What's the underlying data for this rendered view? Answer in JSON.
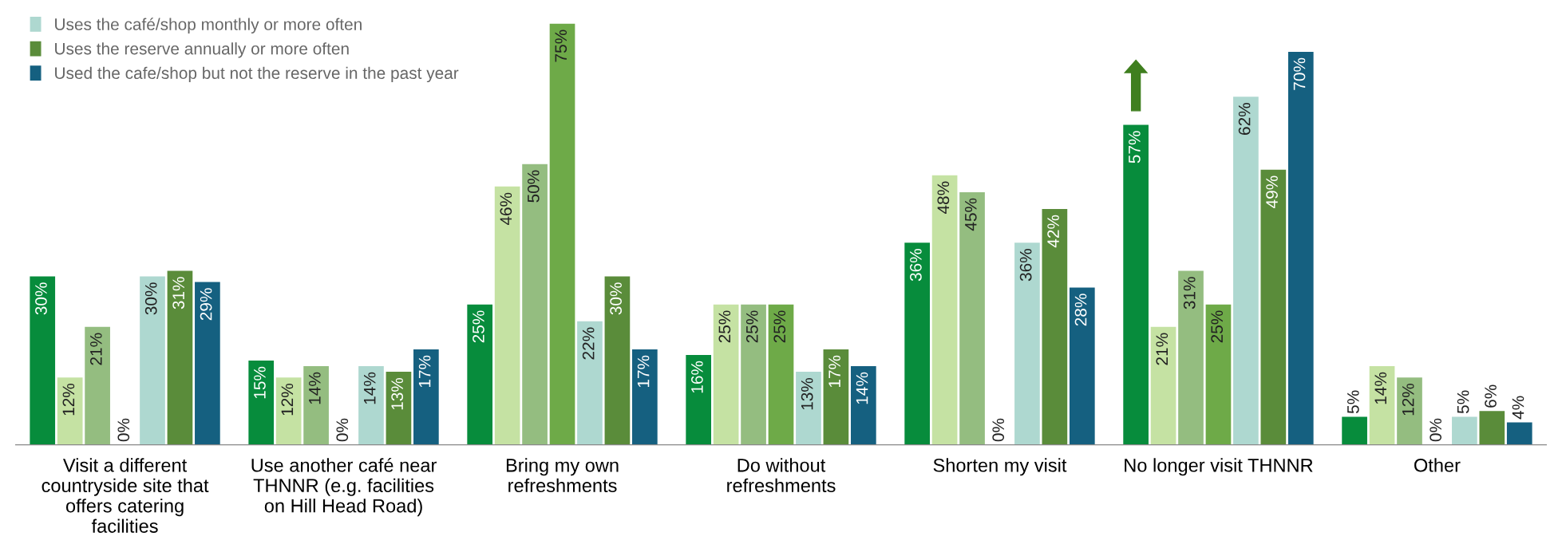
{
  "chart_data": {
    "type": "bar",
    "categories": [
      "Visit a different countryside site that offers catering facilities",
      "Use another café near THNNR (e.g. facilities on Hill Head Road)",
      "Bring my own refreshments",
      "Do without refreshments",
      "Shorten my visit",
      "No longer visit THNNR",
      "Other"
    ],
    "series": [
      {
        "color": "#078c3c",
        "values": [
          30,
          15,
          25,
          16,
          36,
          57,
          5
        ],
        "value_labels": [
          "30%",
          "15%",
          "25%",
          "16%",
          "36%",
          "57%",
          "5%"
        ]
      },
      {
        "color": "#c5e2a3",
        "values": [
          12,
          12,
          46,
          25,
          48,
          21,
          14
        ],
        "value_labels": [
          "12%",
          "12%",
          "46%",
          "25%",
          "48%",
          "21%",
          "14%"
        ]
      },
      {
        "color": "#94bd80",
        "values": [
          21,
          14,
          50,
          25,
          45,
          31,
          12
        ],
        "value_labels": [
          "21%",
          "14%",
          "50%",
          "25%",
          "45%",
          "31%",
          "12%"
        ]
      },
      {
        "color": "#6eaa48",
        "values": [
          0,
          0,
          75,
          25,
          0,
          25,
          0
        ],
        "value_labels": [
          "0%",
          "0%",
          "75%",
          "25%",
          "0%",
          "25%",
          "0%"
        ]
      },
      {
        "name": "Uses the café/shop monthly or more often",
        "color": "#aed8d0",
        "values": [
          30,
          14,
          22,
          13,
          36,
          62,
          5
        ],
        "value_labels": [
          "30%",
          "14%",
          "22%",
          "13%",
          "36%",
          "62%",
          "5%"
        ]
      },
      {
        "name": "Uses the reserve annually or more often",
        "color": "#5a8c3a",
        "values": [
          31,
          13,
          30,
          17,
          42,
          49,
          6
        ],
        "value_labels": [
          "31%",
          "13%",
          "30%",
          "17%",
          "42%",
          "49%",
          "6%"
        ]
      },
      {
        "name": "Used the cafe/shop but not the reserve in the past year",
        "color": "#156080",
        "values": [
          29,
          17,
          17,
          14,
          28,
          70,
          4
        ],
        "value_labels": [
          "29%",
          "17%",
          "17%",
          "14%",
          "28%",
          "70%",
          "4%"
        ]
      }
    ],
    "grid": false,
    "legend": "top left",
    "tick_labels": "x"
  }
}
